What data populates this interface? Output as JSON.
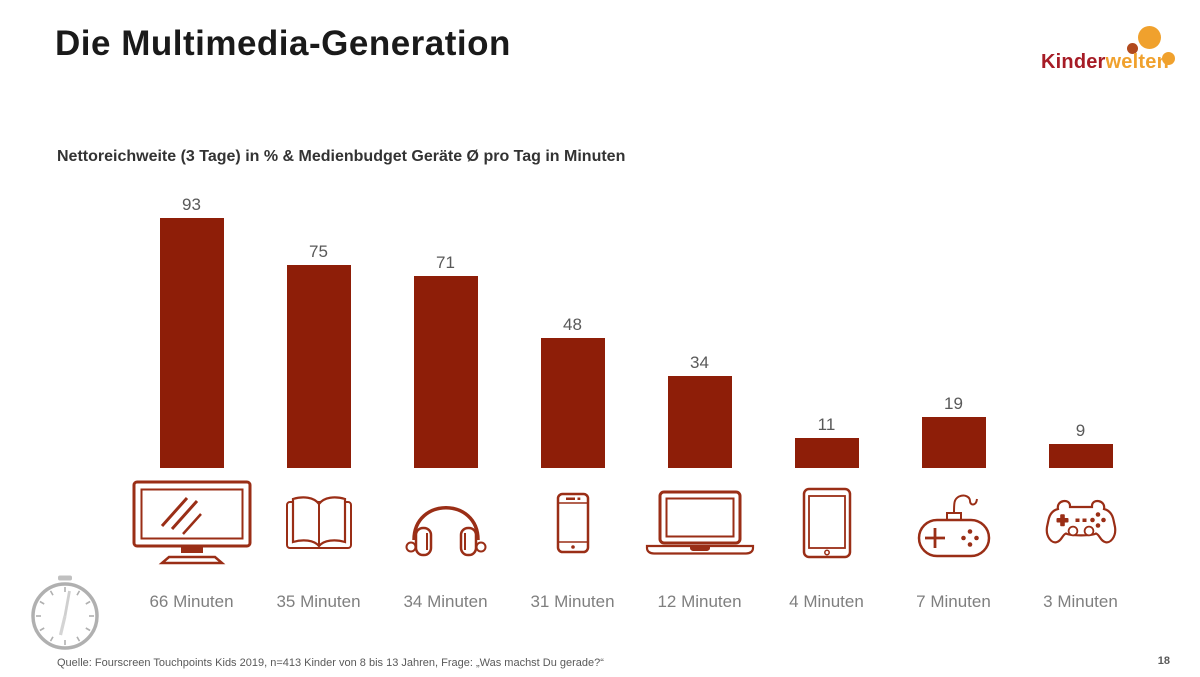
{
  "slide": {
    "title": "Die Multimedia-Generation",
    "subtitle": "Nettoreichweite (3 Tage) in % & Medienbudget Geräte Ø pro Tag in Minuten",
    "source": "Quelle: Fourscreen Touchpoints Kids 2019, n=413 Kinder von 8 bis 13 Jahren, Frage: „Was machst Du gerade?“",
    "page_number": "18"
  },
  "logo": {
    "word_red": "Kinder",
    "word_orange": "welten"
  },
  "colors": {
    "bar": "#8E1E08",
    "icon_stroke": "#9A2E16",
    "value_label": "#595959",
    "minutes_label": "#7F7F7F",
    "title": "#1A1A1A",
    "logo_red": "#A61C26",
    "logo_orange": "#F0A12D",
    "clock_gray": "#909090"
  },
  "chart_data": {
    "type": "bar",
    "title": "Nettoreichweite (3 Tage) in % & Medienbudget Geräte Ø pro Tag in Minuten",
    "categories": [
      "tv",
      "book",
      "headphones",
      "smartphone",
      "laptop",
      "tablet",
      "gamepad-wired",
      "gamepad-console"
    ],
    "series": [
      {
        "name": "Nettoreichweite (3 Tage) in %",
        "values": [
          93,
          75,
          71,
          48,
          34,
          11,
          19,
          9
        ]
      },
      {
        "name": "Medienbudget Geräte Ø pro Tag in Minuten",
        "values": [
          66,
          35,
          34,
          31,
          12,
          4,
          7,
          3
        ]
      }
    ],
    "ylim": [
      0,
      100
    ],
    "grid": false,
    "legend": "none",
    "bar_color": "#8E1E08"
  },
  "columns": [
    {
      "value": "93",
      "minutes": "66 Minuten",
      "icon": "tv-icon"
    },
    {
      "value": "75",
      "minutes": "35 Minuten",
      "icon": "book-icon"
    },
    {
      "value": "71",
      "minutes": "34 Minuten",
      "icon": "headphones-icon"
    },
    {
      "value": "48",
      "minutes": "31 Minuten",
      "icon": "smartphone-icon"
    },
    {
      "value": "34",
      "minutes": "12 Minuten",
      "icon": "laptop-icon"
    },
    {
      "value": "11",
      "minutes": "4 Minuten",
      "icon": "tablet-icon"
    },
    {
      "value": "19",
      "minutes": "7 Minuten",
      "icon": "wired-gamepad-icon"
    },
    {
      "value": "9",
      "minutes": "3 Minuten",
      "icon": "console-gamepad-icon"
    }
  ]
}
